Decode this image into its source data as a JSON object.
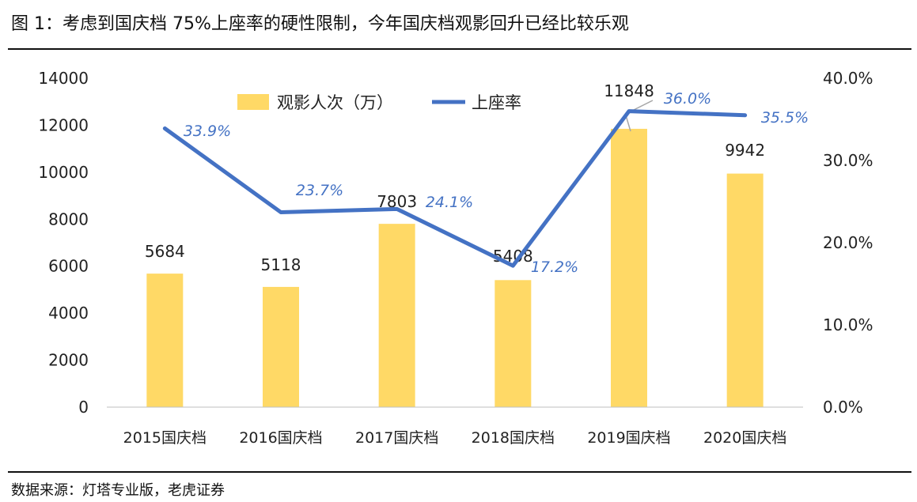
{
  "title": "图 1：考虑到国庆档 75%上座率的硬性限制，今年国庆档观影回升已经比较乐观",
  "source": "数据来源：灯塔专业版，老虎证券",
  "chart_data": {
    "type": "bar",
    "categories": [
      "2015国庆档",
      "2016国庆档",
      "2017国庆档",
      "2018国庆档",
      "2019国庆档",
      "2020国庆档"
    ],
    "series": [
      {
        "name": "观影人次（万）",
        "type": "bar",
        "axis": "left",
        "color": "#FFD966",
        "values": [
          5684,
          5118,
          7803,
          5408,
          11848,
          9942
        ],
        "labels": [
          "5684",
          "5118",
          "7803",
          "5408",
          "11848",
          "9942"
        ]
      },
      {
        "name": "上座率",
        "type": "line",
        "axis": "right",
        "color": "#4472C4",
        "values": [
          0.339,
          0.237,
          0.241,
          0.172,
          0.36,
          0.355
        ],
        "labels": [
          "33.9%",
          "23.7%",
          "24.1%",
          "17.2%",
          "36.0%",
          "35.5%"
        ]
      }
    ],
    "y_left": {
      "min": 0,
      "max": 14000,
      "ticks": [
        0,
        2000,
        4000,
        6000,
        8000,
        10000,
        12000,
        14000
      ],
      "tick_labels": [
        "0",
        "2000",
        "4000",
        "6000",
        "8000",
        "10000",
        "12000",
        "14000"
      ]
    },
    "y_right": {
      "min": 0,
      "max": 0.4,
      "ticks": [
        0,
        0.1,
        0.2,
        0.3,
        0.4
      ],
      "tick_labels": [
        "0.0%",
        "10.0%",
        "20.0%",
        "30.0%",
        "40.0%"
      ]
    },
    "grid": false,
    "legend_position": "top"
  }
}
